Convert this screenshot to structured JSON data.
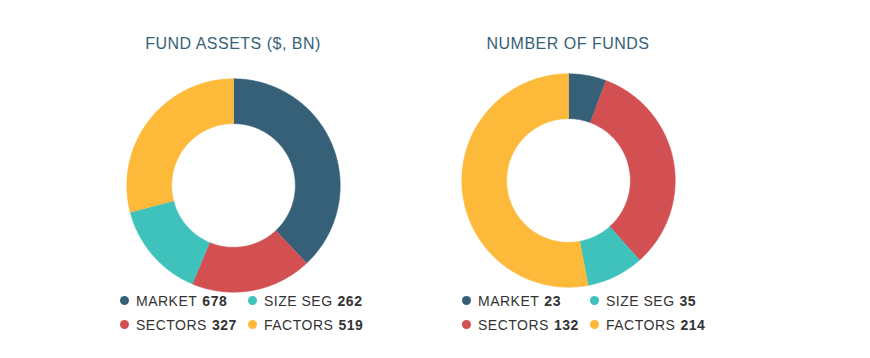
{
  "chart_data": [
    {
      "type": "donut",
      "title": "FUND ASSETS ($, BN)",
      "categories": [
        "MARKET",
        "SECTORS",
        "SIZE SEG",
        "FACTORS"
      ],
      "values": [
        678,
        327,
        262,
        519
      ],
      "colors": [
        "#365f78",
        "#d24f52",
        "#3fc1bc",
        "#fdb93a"
      ],
      "legend": "bottom"
    },
    {
      "type": "donut",
      "title": "NUMBER OF FUNDS",
      "categories": [
        "MARKET",
        "SECTORS",
        "SIZE SEG",
        "FACTORS"
      ],
      "values": [
        23,
        132,
        35,
        214
      ],
      "colors": [
        "#365f78",
        "#d24f52",
        "#3fc1bc",
        "#fdb93a"
      ],
      "legend": "bottom"
    }
  ]
}
